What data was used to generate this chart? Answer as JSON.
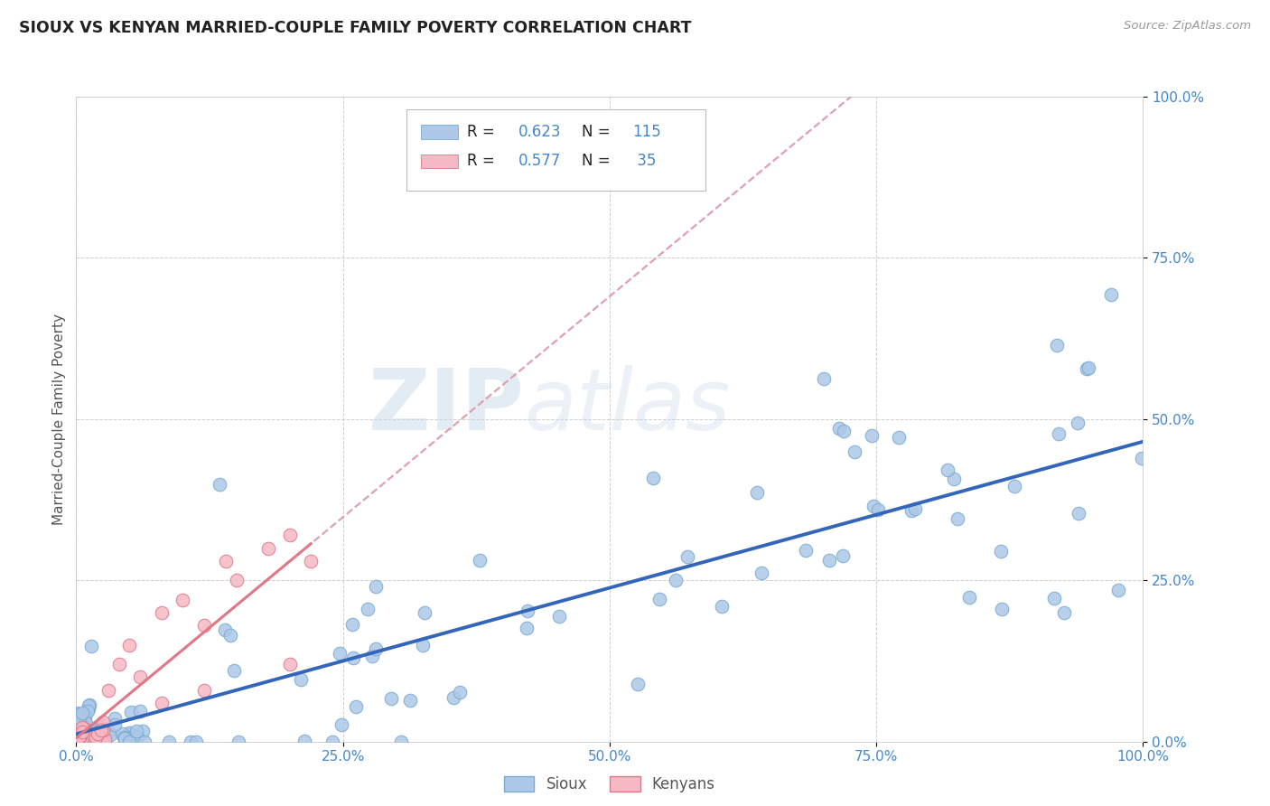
{
  "title": "SIOUX VS KENYAN MARRIED-COUPLE FAMILY POVERTY CORRELATION CHART",
  "source": "Source: ZipAtlas.com",
  "ylabel": "Married-Couple Family Poverty",
  "xlim": [
    0.0,
    1.0
  ],
  "ylim": [
    0.0,
    1.0
  ],
  "xtick_positions": [
    0,
    0.25,
    0.5,
    0.75,
    1.0
  ],
  "ytick_positions": [
    0,
    0.25,
    0.5,
    0.75,
    1.0
  ],
  "xtick_labels": [
    "0.0%",
    "25.0%",
    "50.0%",
    "75.0%",
    "100.0%"
  ],
  "ytick_labels": [
    "0.0%",
    "25.0%",
    "50.0%",
    "75.0%",
    "100.0%"
  ],
  "watermark_zip": "ZIP",
  "watermark_atlas": "atlas",
  "sioux_R": "0.623",
  "sioux_N": "115",
  "kenyan_R": "0.577",
  "kenyan_N": "35",
  "sioux_color": "#adc8e8",
  "sioux_edge": "#7aaad0",
  "kenyan_color": "#f5b8c4",
  "kenyan_edge": "#e07888",
  "sioux_line_color": "#3366bb",
  "kenyan_line_color": "#e07888",
  "kenyan_dash_color": "#e0a0b0",
  "grid_color": "#c8c8c8",
  "bg_color": "#ffffff",
  "title_color": "#222222",
  "source_color": "#999999",
  "tick_color": "#4488cc",
  "legend_text_dark": "#222222",
  "legend_text_blue": "#4488cc"
}
